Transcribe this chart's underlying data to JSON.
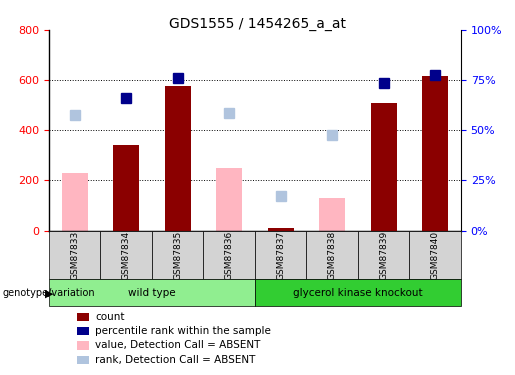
{
  "title": "GDS1555 / 1454265_a_at",
  "samples": [
    "GSM87833",
    "GSM87834",
    "GSM87835",
    "GSM87836",
    "GSM87837",
    "GSM87838",
    "GSM87839",
    "GSM87840"
  ],
  "groups_order": [
    "wild type",
    "glycerol kinase knockout"
  ],
  "groups": {
    "wild type": [
      0,
      1,
      2,
      3
    ],
    "glycerol kinase knockout": [
      4,
      5,
      6,
      7
    ]
  },
  "count_values": [
    0,
    340,
    575,
    0,
    10,
    0,
    510,
    615
  ],
  "percentile_values": [
    0,
    530,
    610,
    0,
    0,
    0,
    590,
    620
  ],
  "absent_value_values": [
    230,
    0,
    0,
    250,
    0,
    130,
    0,
    0
  ],
  "absent_rank_values": [
    460,
    0,
    0,
    470,
    140,
    380,
    0,
    0
  ],
  "count_color": "#8B0000",
  "percentile_color": "#00008B",
  "absent_value_color": "#FFB6C1",
  "absent_rank_color": "#B0C4DE",
  "left_ylim": [
    0,
    800
  ],
  "right_ylim": [
    0,
    100
  ],
  "left_yticks": [
    0,
    200,
    400,
    600,
    800
  ],
  "right_yticks": [
    0,
    25,
    50,
    75,
    100
  ],
  "right_yticklabels": [
    "0%",
    "25%",
    "50%",
    "75%",
    "100%"
  ],
  "group_colors": {
    "wild type": "#90EE90",
    "glycerol kinase knockout": "#32CD32"
  },
  "bg_color": "#D3D3D3",
  "bar_width": 0.5,
  "marker_size": 7
}
